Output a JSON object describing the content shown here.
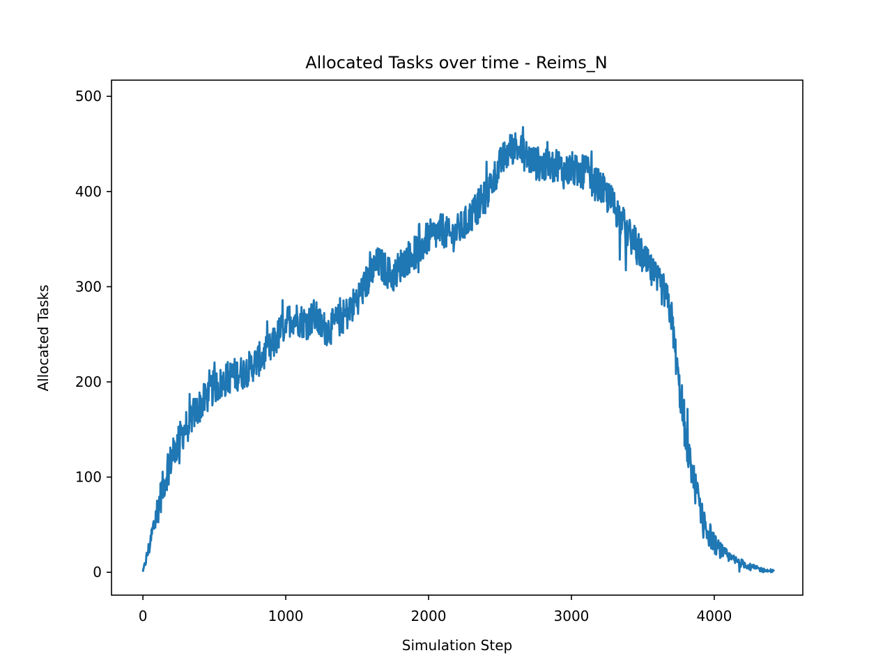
{
  "chart_data": {
    "type": "line",
    "title": "Allocated Tasks over time - Reims_N",
    "xlabel": "Simulation Step",
    "ylabel": "Allocated Tasks",
    "xlim": [
      -220,
      4620
    ],
    "ylim": [
      -24,
      517
    ],
    "xticks": [
      0,
      1000,
      2000,
      3000,
      4000
    ],
    "yticks": [
      0,
      100,
      200,
      300,
      400,
      500
    ],
    "grid": false,
    "legend": "none",
    "colors": {
      "line": "#1f77b4",
      "axes": "#000000",
      "background": "#ffffff"
    },
    "series": [
      {
        "x": [
          0,
          50,
          100,
          150,
          200,
          250,
          300,
          350,
          400,
          450,
          500,
          550,
          600,
          650,
          700,
          750,
          800,
          850,
          900,
          950,
          1000,
          1050,
          1100,
          1150,
          1200,
          1250,
          1300,
          1350,
          1400,
          1450,
          1500,
          1550,
          1600,
          1650,
          1700,
          1750,
          1800,
          1850,
          1900,
          1950,
          2000,
          2050,
          2100,
          2150,
          2200,
          2250,
          2300,
          2350,
          2400,
          2450,
          2500,
          2550,
          2600,
          2650,
          2700,
          2750,
          2800,
          2850,
          2900,
          2950,
          3000,
          3050,
          3100,
          3150,
          3200,
          3250,
          3300,
          3350,
          3400,
          3450,
          3500,
          3550,
          3600,
          3650,
          3700,
          3750,
          3800,
          3850,
          3900,
          3950,
          4000,
          4050,
          4100,
          4150,
          4200,
          4250,
          4300,
          4350,
          4400,
          4420
        ],
        "y": [
          0,
          30,
          65,
          95,
          120,
          138,
          152,
          165,
          175,
          185,
          195,
          198,
          205,
          208,
          210,
          215,
          222,
          228,
          235,
          250,
          262,
          268,
          265,
          262,
          270,
          258,
          255,
          262,
          268,
          275,
          288,
          300,
          315,
          325,
          318,
          310,
          322,
          330,
          335,
          342,
          352,
          355,
          360,
          352,
          358,
          365,
          375,
          385,
          395,
          412,
          428,
          440,
          448,
          442,
          435,
          430,
          428,
          425,
          430,
          420,
          425,
          418,
          422,
          410,
          405,
          395,
          385,
          370,
          355,
          345,
          330,
          318,
          305,
          295,
          270,
          200,
          140,
          100,
          70,
          45,
          30,
          22,
          16,
          12,
          9,
          6,
          4,
          2,
          1,
          1
        ],
        "noise_amplitude": 18
      }
    ]
  }
}
